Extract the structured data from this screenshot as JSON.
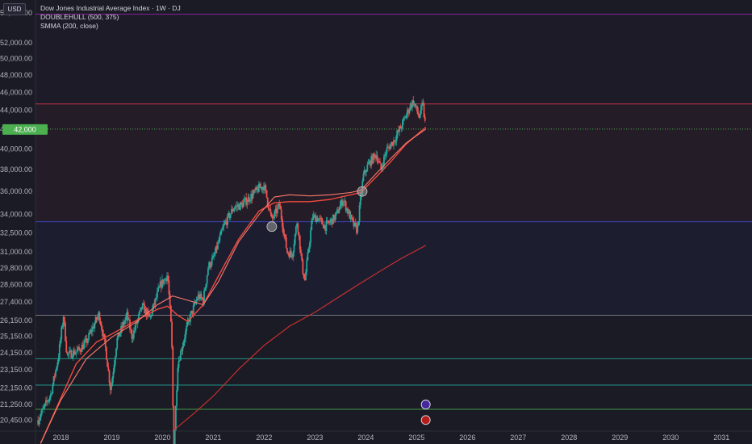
{
  "toolbar": {
    "currency": "USD"
  },
  "legend": {
    "title": "Dow Jones Industrial Average Index · 1W · DJ",
    "indicator_1": "DOUBLEHULL (500, 375)",
    "indicator_2": "SMMA (200, close)"
  },
  "colors": {
    "background": "#1a1b24",
    "candle_up": "#26a69a",
    "candle_down": "#ef5350",
    "hull_line": "#f04a3e",
    "smma_line": "#d32f2f",
    "purple_line": "#9c27b0",
    "red_hline": "#e53950",
    "blue_hline": "#3a4bd6",
    "gray_hline": "#8a8a8a",
    "teal_hline": "#26a69a",
    "green_hline": "#4caf50",
    "price_tag": "#4caf50"
  },
  "chart_data": {
    "type": "candlestick",
    "timeframe": "1W",
    "x_range": [
      2017.5,
      2031.6
    ],
    "y_range": [
      19900,
      57800
    ],
    "y_scale": "log",
    "x_ticks": [
      "2018",
      "2019",
      "2020",
      "2021",
      "2022",
      "2023",
      "2024",
      "2025",
      "2026",
      "2027",
      "2028",
      "2029",
      "2030",
      "2031"
    ],
    "y_ticks": [
      20450,
      21250,
      22150,
      23150,
      24150,
      25150,
      26150,
      27400,
      28600,
      29800,
      31000,
      32500,
      34000,
      36000,
      38000,
      40000,
      42000,
      44000,
      46000,
      48000,
      50000,
      52000,
      56000
    ],
    "current_price_tag": "42,000",
    "price_path": [
      [
        2017.55,
        20450
      ],
      [
        2017.8,
        21800
      ],
      [
        2017.95,
        23900
      ],
      [
        2018.05,
        26500
      ],
      [
        2018.12,
        24000
      ],
      [
        2018.35,
        24300
      ],
      [
        2018.5,
        24800
      ],
      [
        2018.75,
        26600
      ],
      [
        2018.88,
        24400
      ],
      [
        2018.98,
        22000
      ],
      [
        2019.1,
        24900
      ],
      [
        2019.3,
        26500
      ],
      [
        2019.4,
        25100
      ],
      [
        2019.6,
        27100
      ],
      [
        2019.75,
        26300
      ],
      [
        2019.95,
        28500
      ],
      [
        2020.1,
        29300
      ],
      [
        2020.18,
        25200
      ],
      [
        2020.22,
        18800
      ],
      [
        2020.3,
        23500
      ],
      [
        2020.5,
        26000
      ],
      [
        2020.7,
        27800
      ],
      [
        2020.8,
        27500
      ],
      [
        2020.9,
        29900
      ],
      [
        2021.0,
        30500
      ],
      [
        2021.2,
        33000
      ],
      [
        2021.4,
        34600
      ],
      [
        2021.55,
        34800
      ],
      [
        2021.75,
        35600
      ],
      [
        2021.9,
        36300
      ],
      [
        2022.0,
        36500
      ],
      [
        2022.15,
        33500
      ],
      [
        2022.3,
        34800
      ],
      [
        2022.45,
        31000
      ],
      [
        2022.55,
        30800
      ],
      [
        2022.65,
        33500
      ],
      [
        2022.75,
        29800
      ],
      [
        2022.8,
        28900
      ],
      [
        2022.95,
        33800
      ],
      [
        2023.05,
        33700
      ],
      [
        2023.2,
        33000
      ],
      [
        2023.4,
        33800
      ],
      [
        2023.55,
        35300
      ],
      [
        2023.75,
        33200
      ],
      [
        2023.83,
        32700
      ],
      [
        2023.95,
        37400
      ],
      [
        2024.05,
        38500
      ],
      [
        2024.2,
        39500
      ],
      [
        2024.3,
        38000
      ],
      [
        2024.4,
        39800
      ],
      [
        2024.55,
        40800
      ],
      [
        2024.7,
        42300
      ],
      [
        2024.85,
        44200
      ],
      [
        2024.93,
        45000
      ],
      [
        2025.05,
        43300
      ],
      [
        2025.12,
        44700
      ],
      [
        2025.18,
        42000
      ]
    ],
    "hull_line": [
      [
        2017.6,
        19300
      ],
      [
        2017.9,
        21000
      ],
      [
        2018.3,
        23500
      ],
      [
        2018.7,
        24800
      ],
      [
        2019.0,
        25300
      ],
      [
        2019.5,
        26200
      ],
      [
        2019.9,
        26900
      ],
      [
        2020.1,
        27100
      ],
      [
        2020.3,
        26500
      ],
      [
        2020.5,
        26100
      ],
      [
        2020.8,
        27200
      ],
      [
        2021.1,
        29200
      ],
      [
        2021.5,
        32000
      ],
      [
        2021.9,
        34300
      ],
      [
        2022.2,
        35000
      ],
      [
        2022.5,
        35100
      ],
      [
        2022.9,
        35100
      ],
      [
        2023.3,
        35300
      ],
      [
        2023.7,
        35700
      ],
      [
        2023.9,
        35900
      ],
      [
        2024.2,
        37300
      ],
      [
        2024.5,
        38800
      ],
      [
        2024.8,
        40500
      ],
      [
        2025.18,
        42200
      ]
    ],
    "hull_line_2": [
      [
        2017.6,
        19300
      ],
      [
        2018.0,
        21500
      ],
      [
        2018.5,
        23800
      ],
      [
        2019.0,
        25100
      ],
      [
        2019.5,
        26100
      ],
      [
        2019.9,
        27200
      ],
      [
        2020.2,
        27800
      ],
      [
        2020.5,
        27500
      ],
      [
        2020.8,
        27200
      ],
      [
        2021.1,
        28800
      ],
      [
        2021.5,
        31800
      ],
      [
        2021.9,
        34000
      ],
      [
        2022.2,
        35500
      ],
      [
        2022.5,
        35700
      ],
      [
        2022.9,
        35600
      ],
      [
        2023.3,
        35700
      ],
      [
        2023.7,
        35900
      ],
      [
        2023.9,
        36100
      ],
      [
        2024.2,
        37600
      ],
      [
        2024.5,
        39100
      ],
      [
        2024.8,
        40600
      ],
      [
        2025.18,
        42000
      ]
    ],
    "smma_line": [
      [
        2020.2,
        19900
      ],
      [
        2020.6,
        20750
      ],
      [
        2021.0,
        21700
      ],
      [
        2021.5,
        23200
      ],
      [
        2022.0,
        24600
      ],
      [
        2022.5,
        25800
      ],
      [
        2023.0,
        26700
      ],
      [
        2023.5,
        27800
      ],
      [
        2023.9,
        28700
      ],
      [
        2024.3,
        29600
      ],
      [
        2024.7,
        30500
      ],
      [
        2025.18,
        31500
      ]
    ],
    "horizontal_levels": [
      {
        "price": 55800,
        "color": "#9c27b0"
      },
      {
        "price": 44700,
        "color": "#e53950"
      },
      {
        "price": 33400,
        "color": "#3a4bd6"
      },
      {
        "price": 26500,
        "color": "#8a8a8a"
      },
      {
        "price": 23800,
        "color": "#26a69a"
      },
      {
        "price": 22300,
        "color": "#26a69a"
      },
      {
        "price": 21000,
        "color": "#4caf50"
      }
    ],
    "current_price_dotted": 42000,
    "markers": [
      {
        "x": 2023.93,
        "price": 36000,
        "label": ""
      },
      {
        "x": 2022.15,
        "price": 33000,
        "label": ""
      }
    ],
    "event_icons": [
      {
        "x": 2025.18,
        "price": 21250,
        "name": "flash-event-icon"
      },
      {
        "x": 2025.18,
        "price": 20450,
        "name": "earnings-event-icon"
      }
    ]
  }
}
